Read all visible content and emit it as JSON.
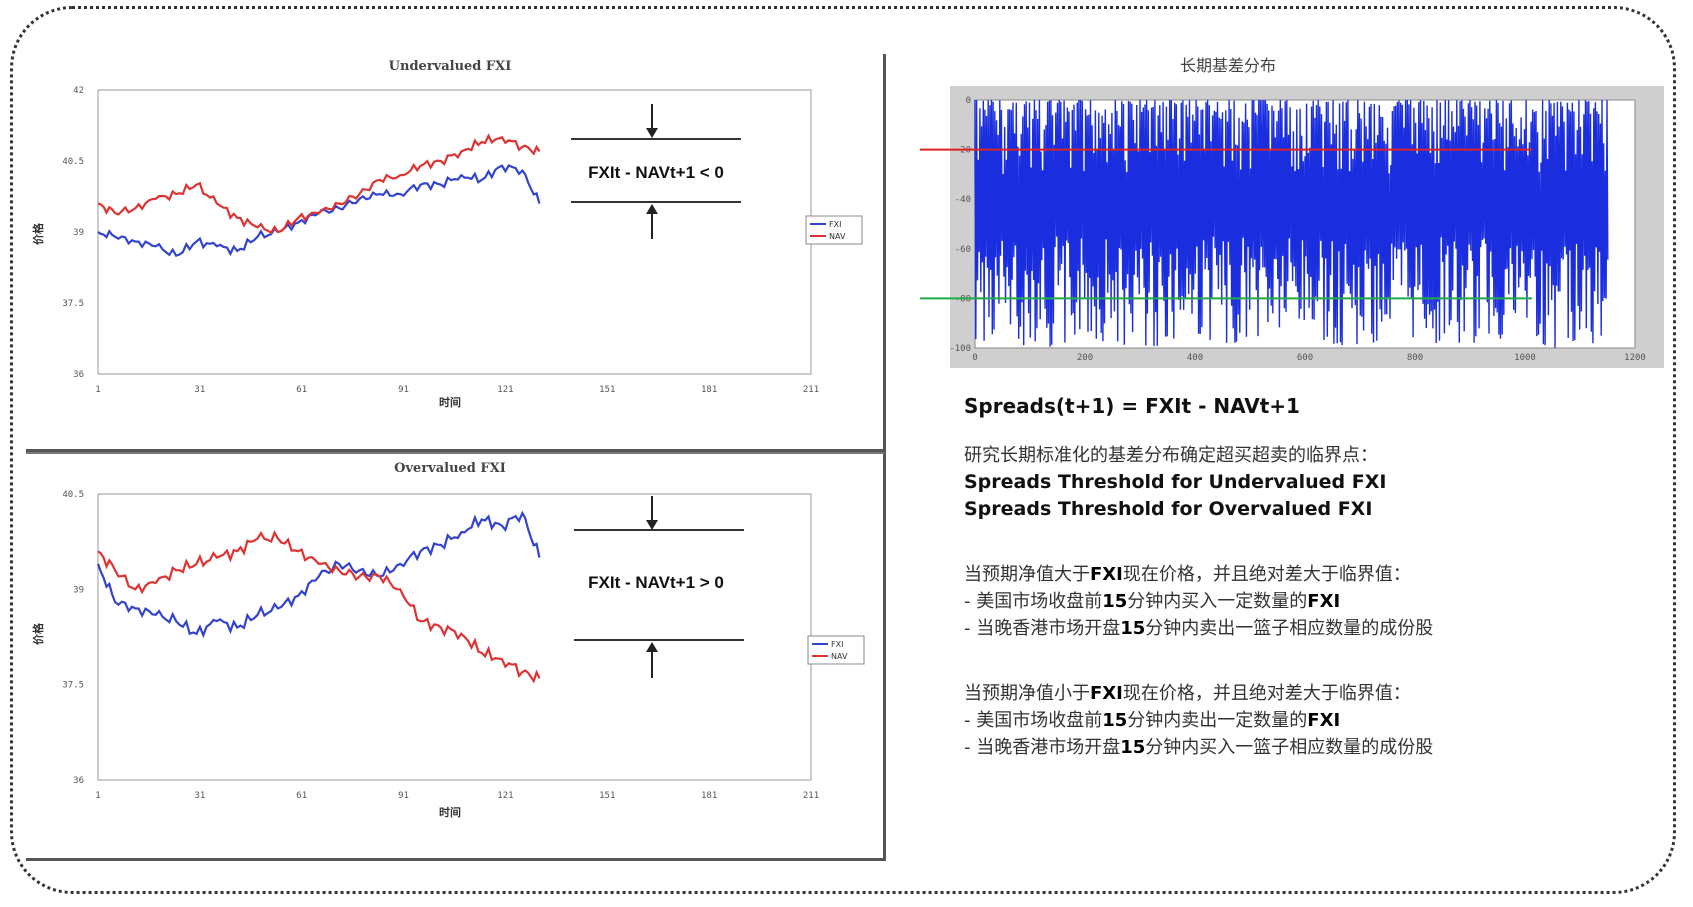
{
  "colors": {
    "fxi": "#3344cc",
    "nav": "#dd3333",
    "upper_threshold": "#dd2222",
    "lower_threshold": "#22aa44",
    "spread": "#1a2ee0"
  },
  "chart_data": [
    {
      "type": "line",
      "title": "Undervalued FXI",
      "xlabel": "时间",
      "ylabel": "价格",
      "xlim": [
        1,
        211
      ],
      "ylim": [
        36,
        42
      ],
      "yticks": [
        "42",
        "40.5",
        "39",
        "37.5",
        "36"
      ],
      "xticks": [
        "1",
        "31",
        "61",
        "91",
        "121",
        "151",
        "181",
        "211"
      ],
      "annotation": "FXIt - NAVt+1 < 0",
      "legend": [
        "FXI",
        "NAV"
      ],
      "legend_position": "right",
      "series": [
        {
          "name": "FXI",
          "x": [
            1,
            6,
            12,
            18,
            24,
            30,
            36,
            42,
            48,
            54,
            60,
            66,
            72,
            78,
            84,
            90,
            96,
            102,
            108,
            114,
            120,
            126,
            131
          ],
          "values": [
            39.0,
            38.9,
            38.8,
            38.7,
            38.5,
            38.8,
            38.7,
            38.6,
            38.9,
            39.0,
            39.2,
            39.4,
            39.5,
            39.7,
            39.8,
            39.8,
            40.0,
            40.0,
            40.2,
            40.1,
            40.4,
            40.3,
            39.6
          ]
        },
        {
          "name": "NAV",
          "x": [
            1,
            6,
            12,
            18,
            24,
            30,
            36,
            42,
            48,
            54,
            60,
            66,
            72,
            78,
            84,
            90,
            96,
            102,
            108,
            114,
            120,
            126,
            131
          ],
          "values": [
            39.6,
            39.4,
            39.5,
            39.7,
            39.8,
            40.0,
            39.6,
            39.3,
            39.1,
            39.0,
            39.3,
            39.4,
            39.6,
            39.8,
            40.1,
            40.2,
            40.4,
            40.5,
            40.7,
            40.9,
            41.0,
            40.8,
            40.7
          ]
        }
      ]
    },
    {
      "type": "line",
      "title": "Overvalued FXI",
      "xlabel": "时间",
      "ylabel": "价格",
      "xlim": [
        1,
        211
      ],
      "ylim": [
        36,
        40.5
      ],
      "yticks": [
        "40.5",
        "39",
        "37.5",
        "36"
      ],
      "xticks": [
        "1",
        "31",
        "61",
        "91",
        "121",
        "151",
        "181",
        "211"
      ],
      "annotation": "FXIt - NAVt+1 > 0",
      "legend": [
        "FXI",
        "NAV"
      ],
      "legend_position": "right",
      "series": [
        {
          "name": "FXI",
          "x": [
            1,
            6,
            12,
            18,
            24,
            30,
            36,
            42,
            48,
            54,
            60,
            66,
            72,
            78,
            84,
            90,
            96,
            102,
            108,
            114,
            120,
            126,
            131
          ],
          "values": [
            39.4,
            38.8,
            38.7,
            38.6,
            38.5,
            38.3,
            38.5,
            38.4,
            38.6,
            38.7,
            38.9,
            39.2,
            39.4,
            39.3,
            39.2,
            39.4,
            39.6,
            39.7,
            39.9,
            40.1,
            40.0,
            40.2,
            39.5
          ]
        },
        {
          "name": "NAV",
          "x": [
            1,
            6,
            12,
            18,
            24,
            30,
            36,
            42,
            48,
            54,
            60,
            66,
            72,
            78,
            84,
            90,
            96,
            102,
            108,
            114,
            120,
            126,
            131
          ],
          "values": [
            39.6,
            39.3,
            39.0,
            39.1,
            39.3,
            39.4,
            39.5,
            39.6,
            39.8,
            39.8,
            39.6,
            39.4,
            39.3,
            39.2,
            39.2,
            39.0,
            38.5,
            38.4,
            38.3,
            38.0,
            37.9,
            37.7,
            37.6
          ]
        }
      ]
    },
    {
      "type": "line",
      "title": "长期基差分布",
      "xlim": [
        0,
        1200
      ],
      "ylim": [
        -100,
        0
      ],
      "xticks": [
        "0",
        "200",
        "400",
        "600",
        "800",
        "1000",
        "1200"
      ],
      "yticks": [
        "0",
        "-20",
        "-40",
        "-60",
        "-80",
        "-100"
      ],
      "grid": false,
      "thresholds": [
        -20,
        -80
      ]
    }
  ],
  "text": {
    "formula": "Spreads(t+1) = FXIt - NAVt+1",
    "intro": "研究长期标准化的基差分布确定超买超卖的临界点：",
    "thr1": "Spreads Threshold for Undervalued FXI",
    "thr2": "Spreads Threshold for Overvalued FXI",
    "case1_a": "当预期净值大于",
    "case1_b": "FXI",
    "case1_c": "现在价格，并且绝对差大于临界值：",
    "case1_l1_a": "- 美国市场收盘前",
    "case1_l1_b": "15",
    "case1_l1_c": "分钟内买入一定数量的",
    "case1_l1_d": "FXI",
    "case1_l2_a": "- 当晚香港市场开盘",
    "case1_l2_b": "15",
    "case1_l2_c": "分钟内卖出一篮子相应数量的成份股",
    "case2_a": "当预期净值小于",
    "case2_b": "FXI",
    "case2_c": "现在价格，并且绝对差大于临界值：",
    "case2_l1_a": "- 美国市场收盘前",
    "case2_l1_b": "15",
    "case2_l1_c": "分钟内卖出一定数量的",
    "case2_l1_d": "FXI",
    "case2_l2_a": "- 当晚香港市场开盘",
    "case2_l2_b": "15",
    "case2_l2_c": "分钟内买入一篮子相应数量的成份股"
  }
}
